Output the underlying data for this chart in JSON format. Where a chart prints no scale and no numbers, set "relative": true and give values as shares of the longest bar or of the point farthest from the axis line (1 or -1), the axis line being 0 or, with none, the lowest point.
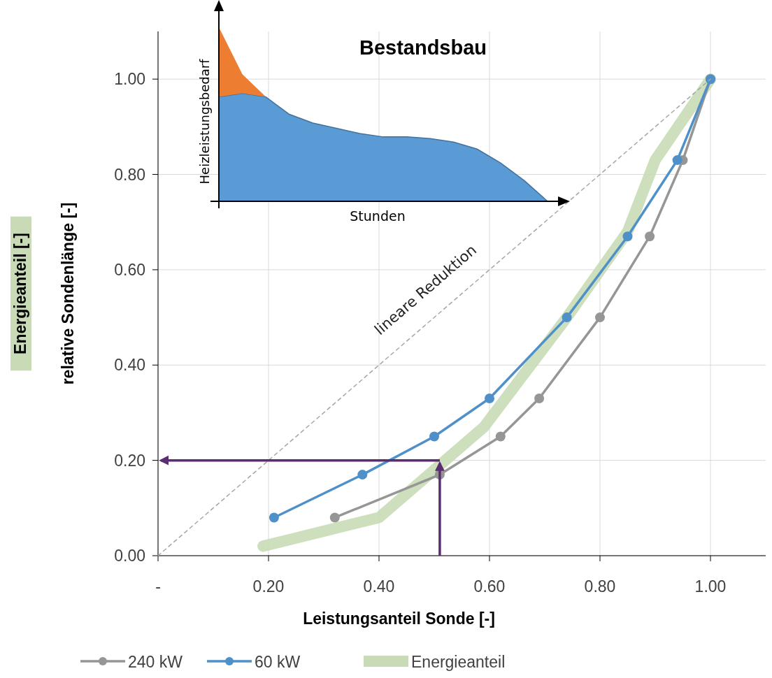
{
  "chart_data": [
    {
      "type": "line",
      "xlabel": "Leistungsanteil Sonde [-]",
      "ylabel": "Energieanteil [-]\nrelative Sondenlänge [-]",
      "xlim": [
        0,
        1.1
      ],
      "ylim": [
        0,
        1.1
      ],
      "xticks": [
        {
          "value": 0,
          "label": "-"
        },
        {
          "value": 0.2,
          "label": "0.20"
        },
        {
          "value": 0.4,
          "label": "0.40"
        },
        {
          "value": 0.6,
          "label": "0.60"
        },
        {
          "value": 0.8,
          "label": "0.80"
        },
        {
          "value": 1,
          "label": "1.00"
        }
      ],
      "yticks": [
        {
          "value": 0,
          "label": "0.00"
        },
        {
          "value": 0.2,
          "label": "0.20"
        },
        {
          "value": 0.4,
          "label": "0.40"
        },
        {
          "value": 0.6,
          "label": "0.60"
        },
        {
          "value": 0.8,
          "label": "0.80"
        },
        {
          "value": 1,
          "label": "1.00"
        }
      ],
      "grid": true,
      "legend": "bottom",
      "series": [
        {
          "name": "240 kW",
          "color": "#969696",
          "marker": "circle",
          "line_style": "solid",
          "x": [
            0.32,
            0.51,
            0.62,
            0.69,
            0.8,
            0.89,
            0.95,
            1.0
          ],
          "values": [
            0.08,
            0.17,
            0.25,
            0.33,
            0.5,
            0.67,
            0.83,
            1.0
          ]
        },
        {
          "name": "60 kW",
          "color": "#5090c8",
          "marker": "circle",
          "line_style": "solid",
          "x": [
            0.21,
            0.37,
            0.5,
            0.6,
            0.74,
            0.85,
            0.94,
            1.0
          ],
          "values": [
            0.08,
            0.17,
            0.25,
            0.33,
            0.5,
            0.67,
            0.83,
            1.0
          ]
        },
        {
          "name": "Energieanteil",
          "color": "#c8dbb6",
          "marker": "none",
          "line_style": "solid",
          "x": [
            0.19,
            0.4,
            0.59,
            0.74,
            0.85,
            0.9,
            1.0
          ],
          "values": [
            0.02,
            0.08,
            0.27,
            0.5,
            0.68,
            0.83,
            1.0
          ]
        },
        {
          "color": "#a6a6a6",
          "marker": "none",
          "line_style": "dashed",
          "x": [
            0,
            1
          ],
          "values": [
            0,
            1
          ]
        }
      ],
      "ref_lines": [
        {
          "axis": "x",
          "value": 0.51,
          "color": "#5b2c6f"
        },
        {
          "axis": "y",
          "value": 0.2,
          "color": "#5b2c6f"
        }
      ],
      "annotations": [
        "lineare Reduktion"
      ]
    },
    {
      "type": "area",
      "title": "Bestandsbau",
      "xlabel": "Stunden",
      "ylabel": "Heizleistungsbedarf",
      "relative": true,
      "stacked": true,
      "categories": [
        null,
        null,
        null,
        null,
        null,
        null,
        null,
        null,
        null,
        null,
        null,
        null,
        null,
        null,
        null
      ],
      "series": [
        {
          "color": "#5b9bd5",
          "values": [
            0.6,
            0.62,
            0.6,
            0.5,
            0.45,
            0.42,
            0.39,
            0.37,
            0.37,
            0.36,
            0.34,
            0.3,
            0.22,
            0.12,
            0
          ]
        },
        {
          "color": "#ed7d31",
          "values": [
            0.4,
            0.11,
            0,
            0,
            0,
            0,
            0,
            0,
            0,
            0,
            0,
            0,
            0,
            0,
            0
          ]
        }
      ]
    }
  ]
}
